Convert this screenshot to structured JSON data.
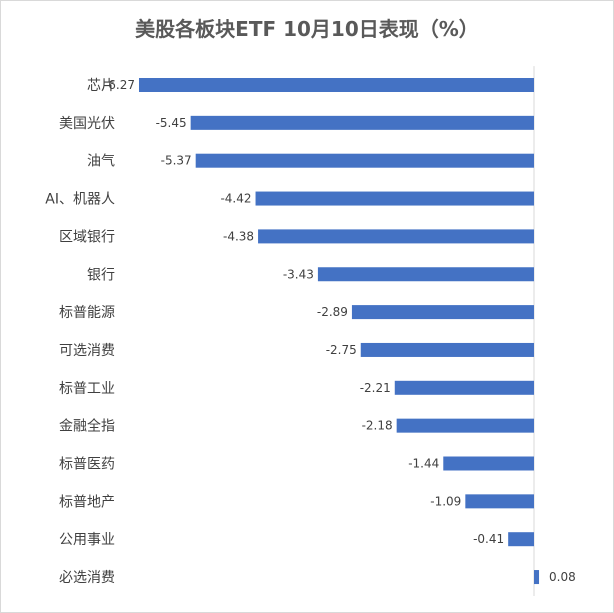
{
  "chart_data": {
    "type": "bar",
    "orientation": "horizontal",
    "title": "美股各板块ETF 10月10日表现（%）",
    "categories": [
      "芯片",
      "美国光伏",
      "油气",
      "AI、机器人",
      "区域银行",
      "银行",
      "标普能源",
      "可选消费",
      "标普工业",
      "金融全指",
      "标普医药",
      "标普地产",
      "公用事业",
      "必选消费"
    ],
    "values": [
      -6.27,
      -5.45,
      -5.37,
      -4.42,
      -4.38,
      -3.43,
      -2.89,
      -2.75,
      -2.21,
      -2.18,
      -1.44,
      -1.09,
      -0.41,
      0.08
    ],
    "value_labels": [
      "-6.27",
      "-5.45",
      "-5.37",
      "-4.42",
      "-4.38",
      "-3.43",
      "-2.89",
      "-2.75",
      "-2.21",
      "-2.18",
      "-1.44",
      "-1.09",
      "-0.41",
      "0.08"
    ],
    "bar_color": "#4472c4",
    "axis_color": "#d9d9d9",
    "grid": false,
    "legend": "none"
  }
}
